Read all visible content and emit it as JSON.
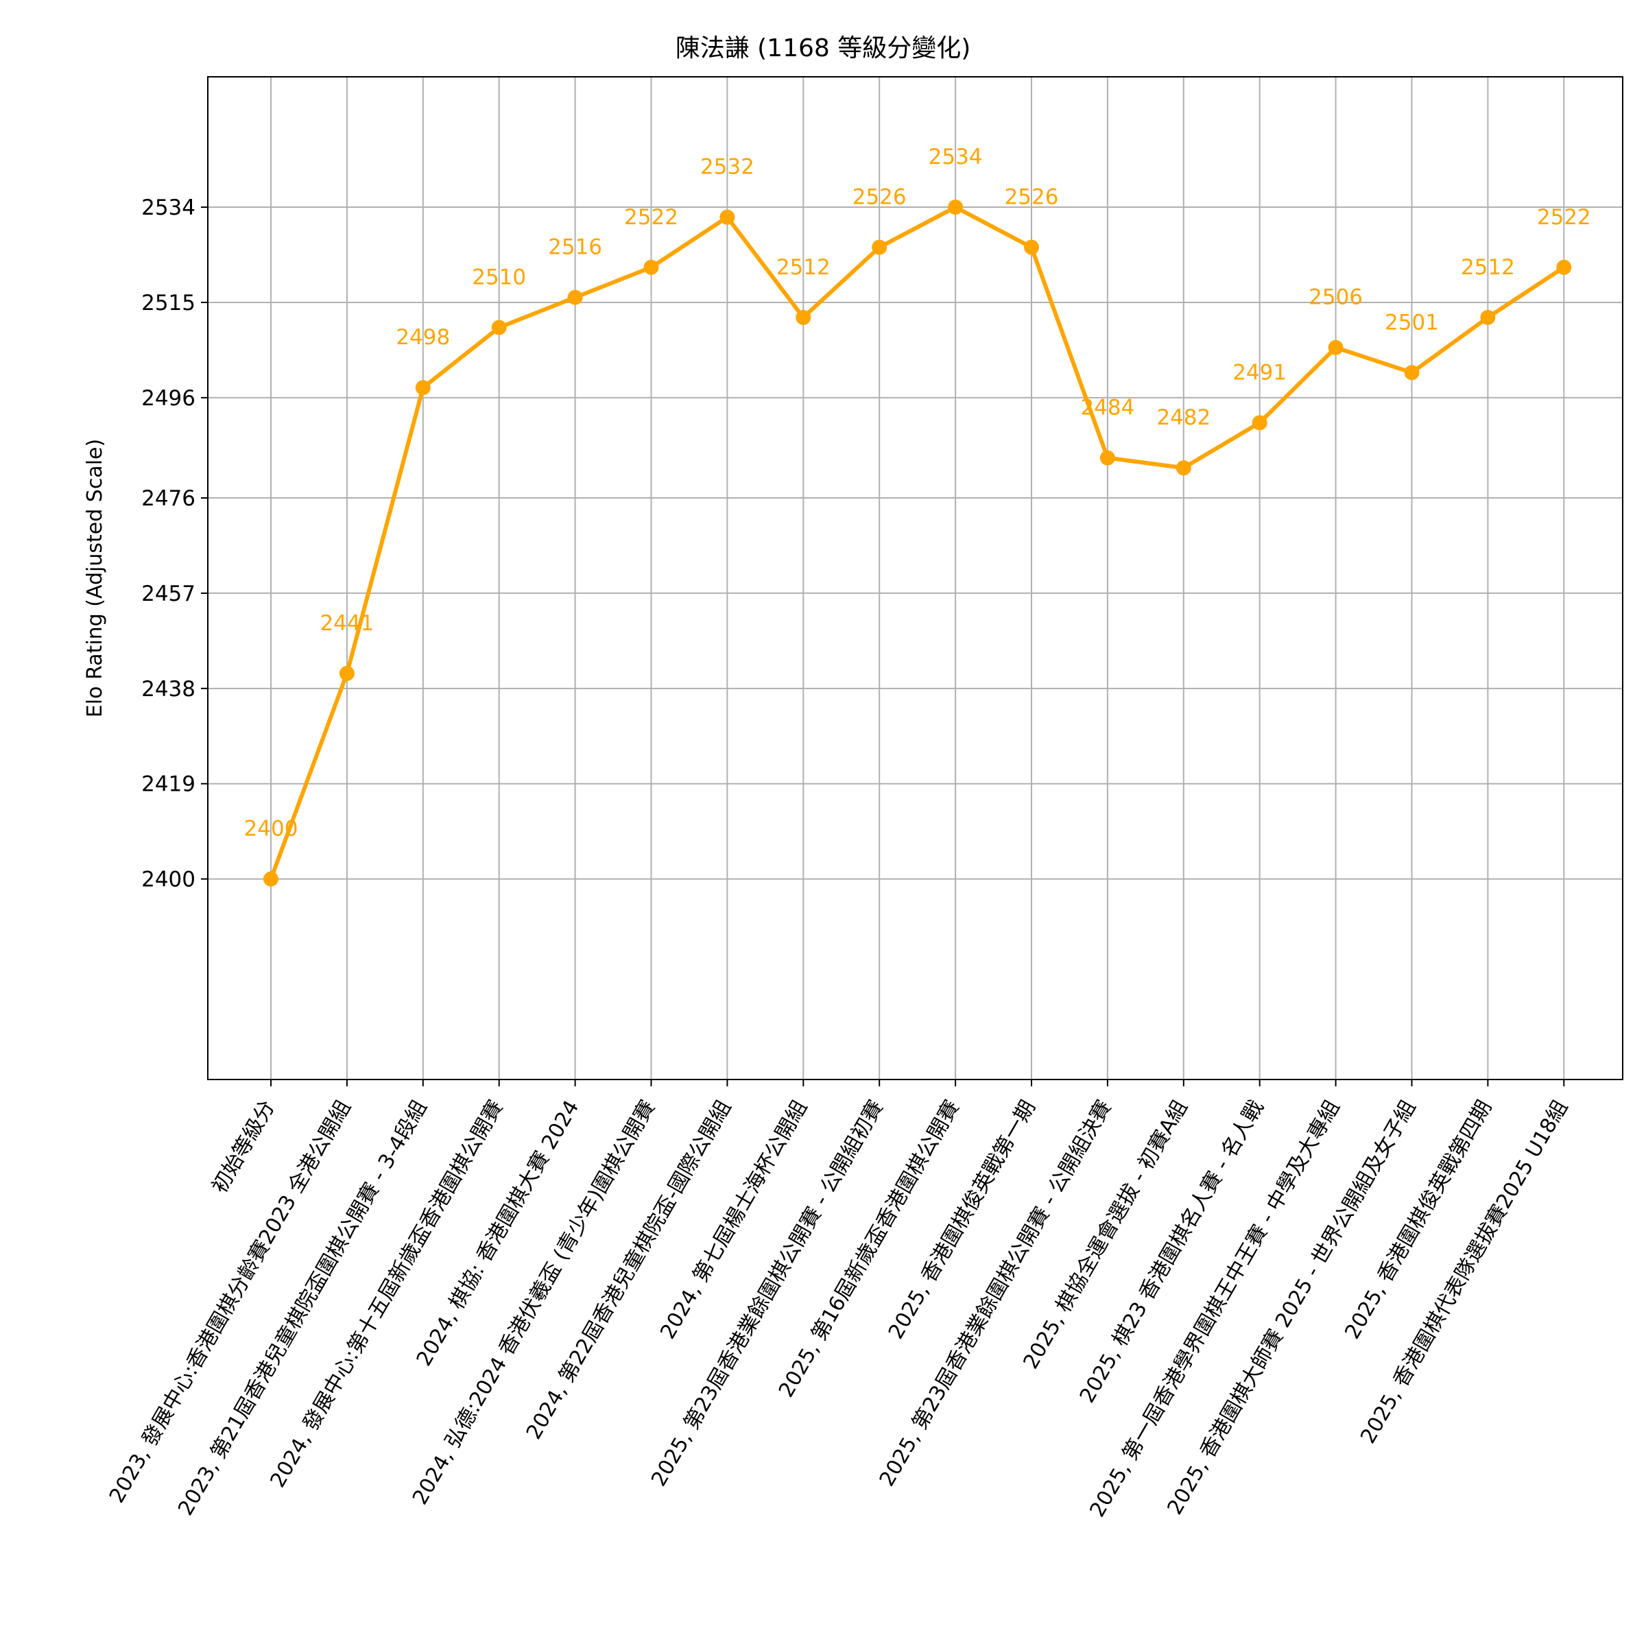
{
  "chart_data": {
    "type": "line",
    "title": "陳法謙 (1168 等級分變化)",
    "xlabel": "",
    "ylabel": "Elo Rating (Adjusted Scale)",
    "categories": [
      "初始等級分",
      "2023, 發展中心:香港圍棋分齡賽2023 全港公開組",
      "2023, 第21屆香港兒童棋院盃圍棋公開賽 - 3-4段組",
      "2024, 發展中心:第十五屆新歲盃香港圍棋公開賽",
      "2024, 棋協: 香港圍棋大賽 2024",
      "2024, 弘德:2024 香港伏羲盃 (青少年)圍棋公開賽",
      "2024, 第22屆香港兒童棋院盃-國際公開組",
      "2024, 第七屆楊士海杯公開組",
      "2025, 第23屆香港業餘圍棋公開賽 - 公開組初賽",
      "2025, 第16屆新歲盃香港圍棋公開賽",
      "2025, 香港圍棋俊英戰第一期",
      "2025, 第23屆香港業餘圍棋公開賽 - 公開組決賽",
      "2025, 棋協全運會選拔 - 初賽A組",
      "2025, 棋23 香港圍棋名人賽 - 名人戰",
      "2025, 第一屆香港學界圍棋王中王賽 - 中學及大專組",
      "2025, 香港圍棋大師賽 2025 - 世界公開組及女子組",
      "2025, 香港圍棋俊英戰第四期",
      "2025, 香港圍棋代表隊選拔賽2025 U18組"
    ],
    "series": [
      {
        "values": [
          2400,
          2441,
          2498,
          2510,
          2516,
          2522,
          2532,
          2512,
          2526,
          2534,
          2526,
          2484,
          2482,
          2491,
          2506,
          2501,
          2512,
          2522
        ],
        "color": "#FFA500",
        "marker": "circle"
      }
    ],
    "yticks": [
      2400,
      2419,
      2438,
      2457,
      2476,
      2496,
      2515,
      2534
    ],
    "ylim": [
      2360,
      2560
    ],
    "grid": true,
    "legend": "none"
  }
}
